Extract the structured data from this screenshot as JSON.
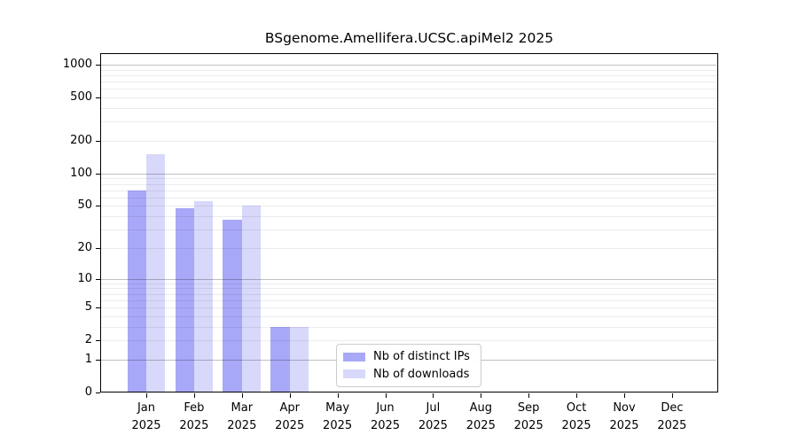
{
  "chart_data": {
    "type": "bar",
    "title": "BSgenome.Amellifera.UCSC.apiMel2 2025",
    "y_scale": "log10(1+x)",
    "ylim": [
      0,
      1275
    ],
    "grid": "horizontal, log minor + major",
    "legend_position": "inside lower-center",
    "y_ticks": [
      "1000",
      "500",
      "200",
      "100",
      "50",
      "20",
      "10",
      "5",
      "2",
      "1",
      "0"
    ],
    "y_tick_values": [
      1000,
      500,
      200,
      100,
      50,
      20,
      10,
      5,
      2,
      1,
      0
    ],
    "categories": [
      "Jan",
      "Feb",
      "Mar",
      "Apr",
      "May",
      "Jun",
      "Jul",
      "Aug",
      "Sep",
      "Oct",
      "Nov",
      "Dec"
    ],
    "x_labels": [
      {
        "month": "Jan",
        "year": "2025"
      },
      {
        "month": "Feb",
        "year": "2025"
      },
      {
        "month": "Mar",
        "year": "2025"
      },
      {
        "month": "Apr",
        "year": "2025"
      },
      {
        "month": "May",
        "year": "2025"
      },
      {
        "month": "Jun",
        "year": "2025"
      },
      {
        "month": "Jul",
        "year": "2025"
      },
      {
        "month": "Aug",
        "year": "2025"
      },
      {
        "month": "Sep",
        "year": "2025"
      },
      {
        "month": "Oct",
        "year": "2025"
      },
      {
        "month": "Nov",
        "year": "2025"
      },
      {
        "month": "Dec",
        "year": "2025"
      }
    ],
    "series": [
      {
        "name": "Nb of distinct IPs",
        "color": "#a8a8f8",
        "values": [
          70,
          48,
          37,
          3,
          0,
          0,
          0,
          0,
          0,
          0,
          0,
          0
        ]
      },
      {
        "name": "Nb of downloads",
        "color": "#d8d8fa",
        "values": [
          152,
          56,
          50,
          3,
          0,
          0,
          0,
          0,
          0,
          0,
          0,
          0
        ]
      }
    ],
    "colors": {
      "grid_minor": "#ececec",
      "grid_major": "#bfbfbf",
      "spine": "#000000",
      "legend_border": "#cccccc",
      "background": "#ffffff"
    }
  }
}
